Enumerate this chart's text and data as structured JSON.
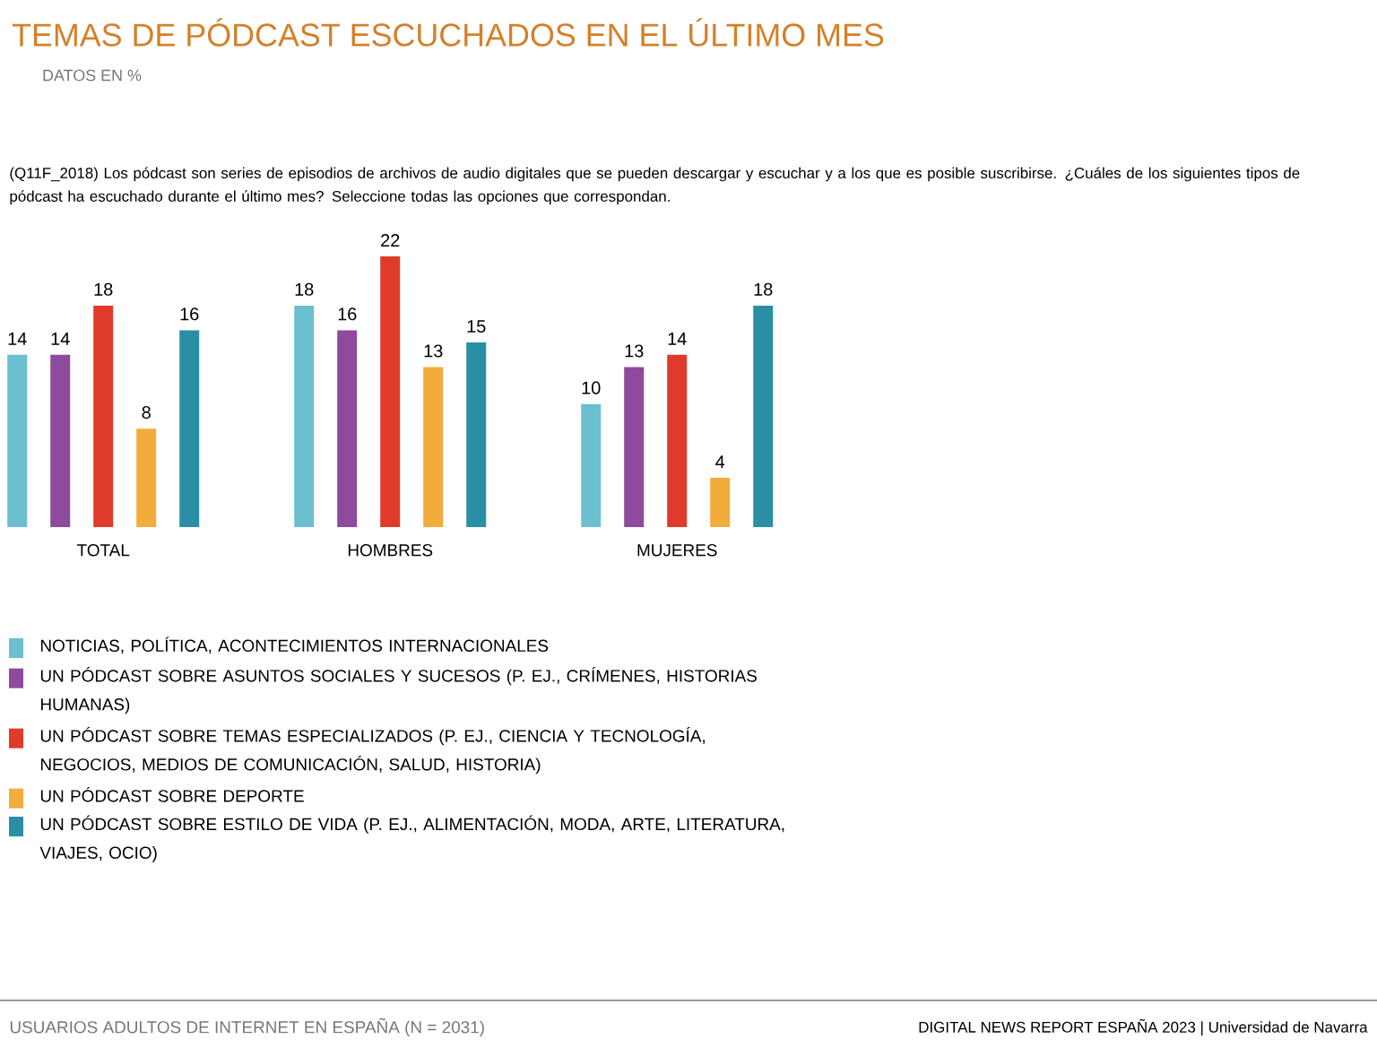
{
  "chart_data": {
    "type": "bar",
    "title": "TEMAS DE PÓDCAST ESCUCHADOS EN EL ÚLTIMO MES",
    "subtitle": "DATOS EN %",
    "annotations": [
      "(Q11F_2018) Los pódcast son series de episodios de archivos de audio digitales que se pueden descargar y escuchar y a los que es posible suscribirse. ¿Cuáles de los siguientes tipos de pódcast ha escuchado durante el último mes? Seleccione todas las opciones que correspondan.",
      "USUARIOS ADULTOS DE INTERNET EN ESPAÑA (N = 2031)",
      "DIGITAL NEWS REPORT ESPAÑA 2023 | Universidad de Navarra"
    ],
    "categories": [
      "TOTAL",
      "HOMBRES",
      "MUJERES"
    ],
    "series": [
      {
        "name": "NOTICIAS, POLÍTICA, ACONTECIMIENTOS INTERNACIONALES",
        "color": "#6bbfcf",
        "values": [
          14,
          18,
          10
        ]
      },
      {
        "name": "UN PÓDCAST SOBRE ASUNTOS SOCIALES Y SUCESOS (P. EJ., CRÍMENES, HISTORIAS HUMANAS)",
        "color": "#8e4a9c",
        "values": [
          14,
          16,
          13
        ]
      },
      {
        "name": "UN PÓDCAST SOBRE TEMAS ESPECIALIZADOS (P. EJ., CIENCIA Y TECNOLOGÍA, NEGOCIOS, MEDIOS DE COMUNICACIÓN, SALUD, HISTORIA)",
        "color": "#e03a2b",
        "values": [
          18,
          22,
          14
        ]
      },
      {
        "name": "UN PÓDCAST SOBRE DEPORTE",
        "color": "#f2ac3c",
        "values": [
          8,
          13,
          4
        ]
      },
      {
        "name": "UN PÓDCAST SOBRE ESTILO DE VIDA (P. EJ., ALIMENTACIÓN, MODA, ARTE, LITERATURA, VIAJES, OCIO)",
        "color": "#2a8fa5",
        "values": [
          16,
          15,
          18
        ]
      }
    ],
    "data_labels": true,
    "legend": "bottom"
  }
}
